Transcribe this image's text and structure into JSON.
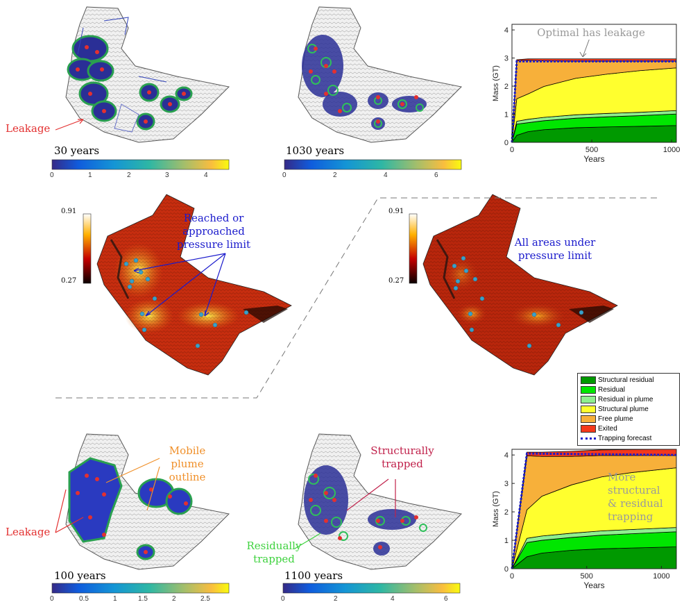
{
  "annotations": {
    "leakage_top": "Leakage",
    "optimal_leakage": "Optimal has leakage",
    "reached": "Reached or approached pressure limit",
    "all_under": "All areas under pressure limit",
    "mobile_plume": "Mobile plume outline",
    "structurally": "Structurally trapped",
    "residually": "Residually trapped",
    "leakage_bottom": "Leakage",
    "more_trapping": "More structural & residual trapping"
  },
  "time_labels": {
    "t30": "30 years",
    "t1030": "1030 years",
    "t100": "100 years",
    "t1100": "1100 years"
  },
  "colorbars": {
    "cb30": {
      "ticks": [
        "0",
        "1",
        "2",
        "3",
        "4"
      ],
      "max": 4.6
    },
    "cb1030": {
      "ticks": [
        "0",
        "2",
        "4",
        "6"
      ],
      "max": 7.0
    },
    "cb100": {
      "ticks": [
        "0",
        "0.5",
        "1",
        "1.5",
        "2",
        "2.5"
      ],
      "max": 2.8
    },
    "cb1100": {
      "ticks": [
        "0",
        "2",
        "4",
        "6"
      ],
      "max": 6.6
    },
    "pressure_left": {
      "max_label": "0.91",
      "min_label": "0.27"
    },
    "pressure_right": {
      "max_label": "0.91",
      "min_label": "0.27"
    }
  },
  "legend": [
    {
      "label": "Structural residual",
      "color": "#009900"
    },
    {
      "label": "Residual",
      "color": "#00e600"
    },
    {
      "label": "Residual in plume",
      "color": "#8fef8f"
    },
    {
      "label": "Structural plume",
      "color": "#ffff2e"
    },
    {
      "label": "Free plume",
      "color": "#f7b03a"
    },
    {
      "label": "Exited",
      "color": "#f4391b"
    },
    {
      "label": "Trapping forecast",
      "color": "#1a1acc"
    }
  ],
  "chart_data": [
    {
      "type": "area",
      "xlabel": "Years",
      "ylabel": "Mass (GT)",
      "xlim": [
        0,
        1030
      ],
      "ylim": [
        0,
        4.2
      ],
      "xticks": [
        "0",
        "500",
        "1000"
      ],
      "yticks": [
        "0",
        "1",
        "2",
        "3",
        "4"
      ],
      "x": [
        0,
        30,
        100,
        200,
        400,
        600,
        800,
        1030
      ],
      "series": [
        {
          "name": "Structural residual",
          "values": [
            0,
            0.25,
            0.38,
            0.45,
            0.52,
            0.55,
            0.57,
            0.6
          ]
        },
        {
          "name": "Residual",
          "values": [
            0,
            0.4,
            0.32,
            0.32,
            0.34,
            0.36,
            0.38,
            0.41
          ]
        },
        {
          "name": "Residual in plume",
          "values": [
            0,
            0.1,
            0.12,
            0.12,
            0.12,
            0.12,
            0.12,
            0.12
          ]
        },
        {
          "name": "Structural plume",
          "values": [
            0,
            0.8,
            0.9,
            1.1,
            1.3,
            1.4,
            1.48,
            1.52
          ]
        },
        {
          "name": "Free plume",
          "values": [
            0,
            1.35,
            1.2,
            0.91,
            0.61,
            0.46,
            0.34,
            0.24
          ]
        },
        {
          "name": "Exited",
          "values": [
            0,
            0.04,
            0.05,
            0.07,
            0.08,
            0.08,
            0.08,
            0.08
          ]
        }
      ],
      "forecast": {
        "name": "Trapping forecast",
        "x": [
          0,
          30,
          1030
        ],
        "values": [
          0,
          2.88,
          2.88
        ]
      }
    },
    {
      "type": "area",
      "xlabel": "Years",
      "ylabel": "Mass (GT)",
      "xlim": [
        0,
        1100
      ],
      "ylim": [
        0,
        4.2
      ],
      "xticks": [
        "0",
        "500",
        "1000"
      ],
      "yticks": [
        "0",
        "1",
        "2",
        "3",
        "4"
      ],
      "x": [
        0,
        100,
        200,
        400,
        600,
        800,
        1100
      ],
      "series": [
        {
          "name": "Structural residual",
          "values": [
            0,
            0.42,
            0.55,
            0.65,
            0.7,
            0.73,
            0.77
          ]
        },
        {
          "name": "Residual",
          "values": [
            0,
            0.5,
            0.45,
            0.45,
            0.48,
            0.5,
            0.53
          ]
        },
        {
          "name": "Residual in plume",
          "values": [
            0,
            0.15,
            0.15,
            0.15,
            0.15,
            0.15,
            0.15
          ]
        },
        {
          "name": "Structural plume",
          "values": [
            0,
            1.0,
            1.4,
            1.7,
            1.9,
            2.0,
            2.1
          ]
        },
        {
          "name": "Free plume",
          "values": [
            0,
            1.9,
            1.4,
            1.0,
            0.75,
            0.6,
            0.43
          ]
        },
        {
          "name": "Exited",
          "values": [
            0,
            0.13,
            0.15,
            0.18,
            0.2,
            0.21,
            0.22
          ]
        }
      ],
      "forecast": {
        "name": "Trapping forecast",
        "x": [
          0,
          100,
          1100
        ],
        "values": [
          0,
          4.05,
          4.0
        ]
      }
    }
  ]
}
